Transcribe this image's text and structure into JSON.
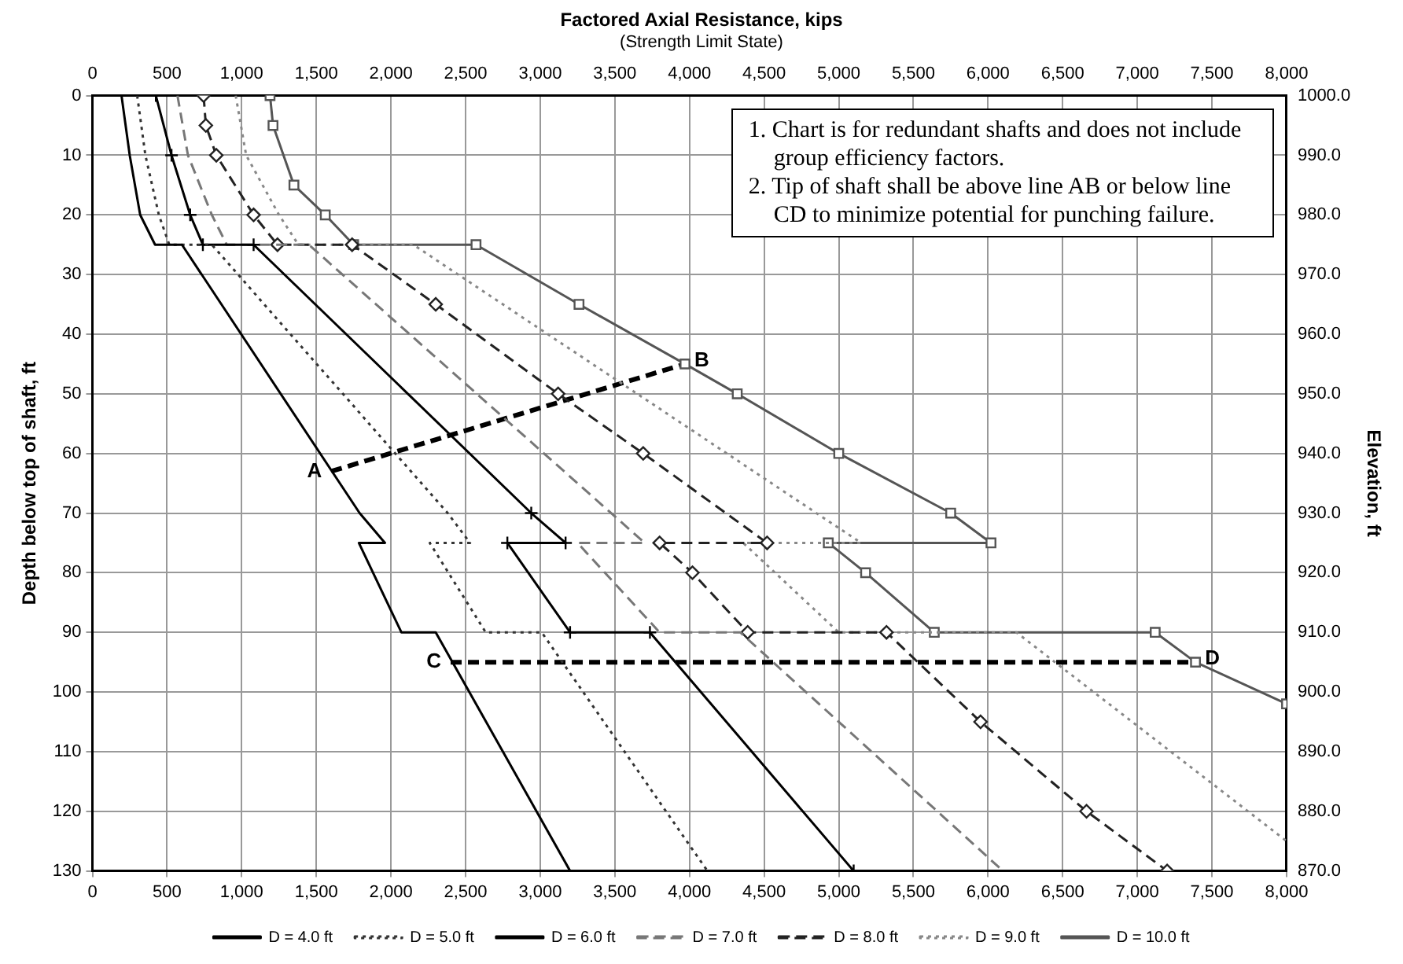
{
  "chart_data": {
    "type": "line",
    "title": "Factored Axial Resistance, kips",
    "subtitle": "(Strength Limit State)",
    "ylabel": "Depth below top of shaft, ft",
    "y2label": "Elevation, ft",
    "xlim": [
      0,
      8000
    ],
    "xticks": [
      0,
      500,
      {
        "value": 1000,
        "label": "1,000"
      },
      {
        "value": 1500,
        "label": "1,500"
      },
      {
        "value": 2000,
        "label": "2,000"
      },
      {
        "value": 2500,
        "label": "2,500"
      },
      {
        "value": 3000,
        "label": "3,000"
      },
      {
        "value": 3500,
        "label": "3,500"
      },
      {
        "value": 4000,
        "label": "4,000"
      },
      {
        "value": 4500,
        "label": "4,500"
      },
      {
        "value": 5000,
        "label": "5,000"
      },
      {
        "value": 5500,
        "label": "5,500"
      },
      {
        "value": 6000,
        "label": "6,000"
      },
      {
        "value": 6500,
        "label": "6,500"
      },
      {
        "value": 7000,
        "label": "7,000"
      },
      {
        "value": 7500,
        "label": "7,500"
      },
      {
        "value": 8000,
        "label": "8,000"
      }
    ],
    "x2lim": [
      0,
      8000
    ],
    "x2ticks": [
      0,
      500,
      {
        "value": 1000,
        "label": "1,000"
      },
      {
        "value": 1500,
        "label": "1,500"
      },
      {
        "value": 2000,
        "label": "2,000"
      },
      {
        "value": 2500,
        "label": "2,500"
      },
      {
        "value": 3000,
        "label": "3,000"
      },
      {
        "value": 3500,
        "label": "3,500"
      },
      {
        "value": 4000,
        "label": "4,000"
      },
      {
        "value": 4500,
        "label": "4,500"
      },
      {
        "value": 5000,
        "label": "5,000"
      },
      {
        "value": 5500,
        "label": "5,500"
      },
      {
        "value": 6000,
        "label": "6,000"
      },
      {
        "value": 6500,
        "label": "6,500"
      },
      {
        "value": 7000,
        "label": "7,000"
      },
      {
        "value": 7500,
        "label": "7,500"
      },
      {
        "value": 8000,
        "label": "8,000"
      }
    ],
    "ylim": [
      130,
      0
    ],
    "yticks": [
      0,
      10,
      20,
      30,
      40,
      50,
      60,
      70,
      80,
      90,
      100,
      110,
      120,
      130
    ],
    "y2lim": [
      870,
      1000
    ],
    "y2ticks": [
      {
        "value": 870,
        "label": "870.0"
      },
      {
        "value": 880,
        "label": "880.0"
      },
      {
        "value": 890,
        "label": "890.0"
      },
      {
        "value": 900,
        "label": "900.0"
      },
      {
        "value": 910,
        "label": "910.0"
      },
      {
        "value": 920,
        "label": "920.0"
      },
      {
        "value": 930,
        "label": "930.0"
      },
      {
        "value": 940,
        "label": "940.0"
      },
      {
        "value": 950,
        "label": "950.0"
      },
      {
        "value": 960,
        "label": "960.0"
      },
      {
        "value": 970,
        "label": "970.0"
      },
      {
        "value": 980,
        "label": "980.0"
      },
      {
        "value": 990,
        "label": "990.0"
      },
      {
        "value": 1000,
        "label": "1000.0"
      }
    ],
    "grid": true,
    "legend": "bottom",
    "series": [
      {
        "name": "D = 4.0 ft",
        "color": "#000000",
        "line_style": "solid",
        "marker": "none",
        "x": [
          195,
          250,
          320,
          420,
          600,
          1790,
          1960,
          1785,
          2070,
          2300,
          3200
        ],
        "values": [
          0,
          10,
          20,
          25,
          25,
          70,
          75,
          75,
          90,
          90,
          130
        ]
      },
      {
        "name": "D = 5.0 ft",
        "color": "#333333",
        "line_style": "dotted",
        "marker": "none",
        "x": [
          300,
          355,
          445,
          515,
          800,
          2380,
          2530,
          2260,
          2635,
          3010,
          4120
        ],
        "values": [
          0,
          10,
          20,
          25,
          25,
          70,
          75,
          75,
          90,
          90,
          130
        ]
      },
      {
        "name": "D = 6.0 ft",
        "color": "#000000",
        "line_style": "solid",
        "marker": "cross",
        "x": [
          425,
          530,
          655,
          740,
          1080,
          2940,
          3170,
          2780,
          3200,
          3735,
          5100
        ],
        "values": [
          0,
          10,
          20,
          25,
          25,
          70,
          75,
          75,
          90,
          90,
          130
        ]
      },
      {
        "name": "D = 7.0 ft",
        "color": "#777777",
        "line_style": "dashed",
        "marker": "none",
        "x": [
          570,
          640,
          800,
          900,
          1450,
          3700,
          3250,
          3800,
          4340,
          6100
        ],
        "values": [
          0,
          10,
          20,
          25,
          25,
          75,
          75,
          90,
          90,
          130
        ]
      },
      {
        "name": "D = 8.0 ft",
        "color": "#222222",
        "line_style": "dashed",
        "marker": "diamond",
        "x": [
          745,
          760,
          830,
          1080,
          1240,
          1740,
          2300,
          3120,
          3690,
          4520,
          3800,
          4020,
          4390,
          5320,
          5950,
          6660,
          7200
        ],
        "values": [
          0,
          5,
          10,
          20,
          25,
          25,
          35,
          50,
          60,
          75,
          75,
          80,
          90,
          90,
          105,
          120,
          130
        ]
      },
      {
        "name": "D = 9.0 ft",
        "color": "#888888",
        "line_style": "dotted",
        "marker": "none",
        "x": [
          960,
          1030,
          1250,
          1380,
          2150,
          2750,
          3650,
          5150,
          4360,
          5000,
          6190,
          8000
        ],
        "values": [
          0,
          10,
          20,
          25,
          25,
          35,
          50,
          75,
          75,
          90,
          90,
          125
        ]
      },
      {
        "name": "D = 10.0 ft",
        "color": "#555555",
        "line_style": "solid",
        "marker": "square",
        "x": [
          1190,
          1210,
          1350,
          1560,
          1750,
          2570,
          3260,
          3970,
          4320,
          5000,
          5750,
          6020,
          4930,
          5180,
          5640,
          7120,
          7390,
          8000
        ],
        "values": [
          0,
          5,
          15,
          20,
          25,
          25,
          35,
          45,
          50,
          60,
          70,
          75,
          75,
          80,
          90,
          90,
          95,
          102
        ]
      },
      {
        "color": "#000000",
        "line_style": "dashed",
        "marker": "none",
        "x": [
          1600,
          3970
        ],
        "values": [
          63,
          45
        ]
      },
      {
        "color": "#000000",
        "line_style": "dashed",
        "marker": "none",
        "x": [
          2400,
          7390
        ],
        "values": [
          95,
          95
        ]
      }
    ],
    "annotations": [
      "1. Chart is for redundant shafts and does not include group efficiency factors.",
      "2. Tip of shaft shall be above line AB or below line CD to minimize potential for punching failure.",
      {
        "text": "A",
        "x": 1600,
        "y": 63
      },
      {
        "text": "B",
        "x": 3970,
        "y": 45
      },
      {
        "text": "C",
        "x": 2400,
        "y": 95
      },
      {
        "text": "D",
        "x": 7390,
        "y": 95
      }
    ]
  }
}
